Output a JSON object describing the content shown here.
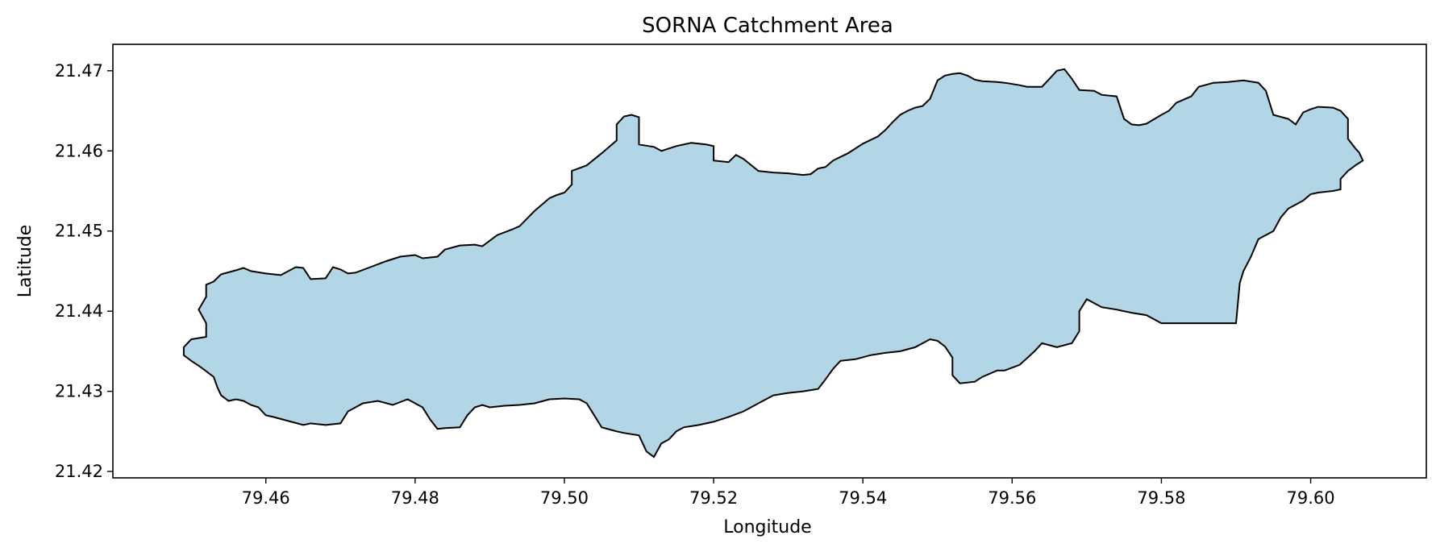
{
  "chart_data": {
    "type": "area",
    "title": "SORNA Catchment Area",
    "xlabel": "Longitude",
    "ylabel": "Latitude",
    "xlim": [
      79.4395,
      79.6155
    ],
    "ylim": [
      21.4192,
      21.4733
    ],
    "x_ticks": [
      79.46,
      79.48,
      79.5,
      79.52,
      79.54,
      79.56,
      79.58,
      79.6
    ],
    "x_tick_labels": [
      "79.46",
      "79.48",
      "79.50",
      "79.52",
      "79.54",
      "79.56",
      "79.58",
      "79.60"
    ],
    "y_ticks": [
      21.42,
      21.43,
      21.44,
      21.45,
      21.46,
      21.47
    ],
    "y_tick_labels": [
      "21.42",
      "21.43",
      "21.44",
      "21.45",
      "21.46",
      "21.47"
    ],
    "grid": false,
    "colors": {
      "fill": "#b2d6e6",
      "outline": "#000000"
    },
    "series": [
      {
        "polygon": [
          [
            79.449,
            21.4355
          ],
          [
            79.45,
            21.4365
          ],
          [
            79.452,
            21.4368
          ],
          [
            79.452,
            21.4385
          ],
          [
            79.451,
            21.4402
          ],
          [
            79.452,
            21.4418
          ],
          [
            79.452,
            21.4433
          ],
          [
            79.453,
            21.4437
          ],
          [
            79.454,
            21.4446
          ],
          [
            79.456,
            21.4451
          ],
          [
            79.457,
            21.4454
          ],
          [
            79.458,
            21.445
          ],
          [
            79.46,
            21.4447
          ],
          [
            79.462,
            21.4445
          ],
          [
            79.464,
            21.4455
          ],
          [
            79.465,
            21.4454
          ],
          [
            79.466,
            21.444
          ],
          [
            79.468,
            21.4441
          ],
          [
            79.469,
            21.4455
          ],
          [
            79.47,
            21.4452
          ],
          [
            79.471,
            21.4447
          ],
          [
            79.472,
            21.4448
          ],
          [
            79.474,
            21.4455
          ],
          [
            79.476,
            21.4462
          ],
          [
            79.478,
            21.4468
          ],
          [
            79.48,
            21.447
          ],
          [
            79.481,
            21.4466
          ],
          [
            79.483,
            21.4468
          ],
          [
            79.484,
            21.4477
          ],
          [
            79.486,
            21.4482
          ],
          [
            79.488,
            21.4483
          ],
          [
            79.489,
            21.4481
          ],
          [
            79.491,
            21.4495
          ],
          [
            79.493,
            21.4502
          ],
          [
            79.494,
            21.4506
          ],
          [
            79.496,
            21.4525
          ],
          [
            79.498,
            21.4541
          ],
          [
            79.499,
            21.4545
          ],
          [
            79.5,
            21.4548
          ],
          [
            79.501,
            21.4558
          ],
          [
            79.501,
            21.4575
          ],
          [
            79.503,
            21.4582
          ],
          [
            79.505,
            21.4597
          ],
          [
            79.506,
            21.4605
          ],
          [
            79.507,
            21.4613
          ],
          [
            79.507,
            21.4633
          ],
          [
            79.508,
            21.4643
          ],
          [
            79.509,
            21.4645
          ],
          [
            79.51,
            21.4642
          ],
          [
            79.51,
            21.4608
          ],
          [
            79.512,
            21.4605
          ],
          [
            79.513,
            21.46
          ],
          [
            79.515,
            21.4606
          ],
          [
            79.517,
            21.461
          ],
          [
            79.519,
            21.4608
          ],
          [
            79.52,
            21.4606
          ],
          [
            79.52,
            21.4588
          ],
          [
            79.522,
            21.4586
          ],
          [
            79.523,
            21.4595
          ],
          [
            79.524,
            21.459
          ],
          [
            79.526,
            21.4575
          ],
          [
            79.528,
            21.4573
          ],
          [
            79.53,
            21.4572
          ],
          [
            79.532,
            21.457
          ],
          [
            79.533,
            21.4571
          ],
          [
            79.534,
            21.4578
          ],
          [
            79.535,
            21.458
          ],
          [
            79.536,
            21.4588
          ],
          [
            79.538,
            21.4597
          ],
          [
            79.54,
            21.4609
          ],
          [
            79.542,
            21.4618
          ],
          [
            79.543,
            21.4626
          ],
          [
            79.544,
            21.4636
          ],
          [
            79.545,
            21.4645
          ],
          [
            79.546,
            21.465
          ],
          [
            79.547,
            21.4654
          ],
          [
            79.548,
            21.4656
          ],
          [
            79.549,
            21.4665
          ],
          [
            79.55,
            21.4688
          ],
          [
            79.551,
            21.4694
          ],
          [
            79.552,
            21.4696
          ],
          [
            79.553,
            21.4697
          ],
          [
            79.554,
            21.4694
          ],
          [
            79.555,
            21.4689
          ],
          [
            79.556,
            21.4687
          ],
          [
            79.558,
            21.4686
          ],
          [
            79.559,
            21.4685
          ],
          [
            79.561,
            21.4682
          ],
          [
            79.562,
            21.468
          ],
          [
            79.564,
            21.468
          ],
          [
            79.565,
            21.469
          ],
          [
            79.566,
            21.47
          ],
          [
            79.567,
            21.4702
          ],
          [
            79.568,
            21.469
          ],
          [
            79.569,
            21.4676
          ],
          [
            79.571,
            21.4675
          ],
          [
            79.572,
            21.467
          ],
          [
            79.574,
            21.4668
          ],
          [
            79.575,
            21.464
          ],
          [
            79.576,
            21.4633
          ],
          [
            79.577,
            21.4632
          ],
          [
            79.578,
            21.4634
          ],
          [
            79.58,
            21.4645
          ],
          [
            79.581,
            21.465
          ],
          [
            79.582,
            21.466
          ],
          [
            79.584,
            21.4668
          ],
          [
            79.585,
            21.468
          ],
          [
            79.587,
            21.4685
          ],
          [
            79.589,
            21.4686
          ],
          [
            79.591,
            21.4688
          ],
          [
            79.593,
            21.4685
          ],
          [
            79.594,
            21.4675
          ],
          [
            79.595,
            21.4645
          ],
          [
            79.597,
            21.464
          ],
          [
            79.598,
            21.4633
          ],
          [
            79.599,
            21.4648
          ],
          [
            79.6,
            21.4652
          ],
          [
            79.601,
            21.4655
          ],
          [
            79.603,
            21.4654
          ],
          [
            79.604,
            21.465
          ],
          [
            79.605,
            21.464
          ],
          [
            79.605,
            21.4615
          ],
          [
            79.606,
            21.4603
          ],
          [
            79.6065,
            21.4598
          ],
          [
            79.607,
            21.4588
          ],
          [
            79.606,
            21.4582
          ],
          [
            79.605,
            21.4575
          ],
          [
            79.604,
            21.4565
          ],
          [
            79.604,
            21.4552
          ],
          [
            79.603,
            21.455
          ],
          [
            79.601,
            21.4548
          ],
          [
            79.6,
            21.4546
          ],
          [
            79.599,
            21.4538
          ],
          [
            79.597,
            21.4528
          ],
          [
            79.596,
            21.4517
          ],
          [
            79.595,
            21.45
          ],
          [
            79.594,
            21.4495
          ],
          [
            79.593,
            21.449
          ],
          [
            79.592,
            21.4468
          ],
          [
            79.591,
            21.445
          ],
          [
            79.5905,
            21.4435
          ],
          [
            79.59,
            21.4385
          ],
          [
            79.58,
            21.4385
          ],
          [
            79.578,
            21.4395
          ],
          [
            79.576,
            21.4398
          ],
          [
            79.574,
            21.4402
          ],
          [
            79.572,
            21.4405
          ],
          [
            79.571,
            21.441
          ],
          [
            79.57,
            21.4415
          ],
          [
            79.569,
            21.44
          ],
          [
            79.569,
            21.4375
          ],
          [
            79.568,
            21.436
          ],
          [
            79.566,
            21.4355
          ],
          [
            79.564,
            21.436
          ],
          [
            79.563,
            21.435
          ],
          [
            79.561,
            21.4333
          ],
          [
            79.559,
            21.4326
          ],
          [
            79.558,
            21.4326
          ],
          [
            79.556,
            21.4318
          ],
          [
            79.555,
            21.4312
          ],
          [
            79.553,
            21.431
          ],
          [
            79.552,
            21.432
          ],
          [
            79.552,
            21.4342
          ],
          [
            79.551,
            21.4356
          ],
          [
            79.55,
            21.4363
          ],
          [
            79.549,
            21.4365
          ],
          [
            79.547,
            21.4355
          ],
          [
            79.545,
            21.435
          ],
          [
            79.543,
            21.4348
          ],
          [
            79.541,
            21.4345
          ],
          [
            79.539,
            21.434
          ],
          [
            79.537,
            21.4338
          ],
          [
            79.536,
            21.4328
          ],
          [
            79.535,
            21.4315
          ],
          [
            79.534,
            21.4303
          ],
          [
            79.532,
            21.43
          ],
          [
            79.53,
            21.4298
          ],
          [
            79.528,
            21.4295
          ],
          [
            79.526,
            21.4285
          ],
          [
            79.524,
            21.4275
          ],
          [
            79.522,
            21.4268
          ],
          [
            79.52,
            21.4262
          ],
          [
            79.518,
            21.4258
          ],
          [
            79.516,
            21.4255
          ],
          [
            79.515,
            21.425
          ],
          [
            79.514,
            21.424
          ],
          [
            79.513,
            21.4235
          ],
          [
            79.512,
            21.4218
          ],
          [
            79.511,
            21.4225
          ],
          [
            79.51,
            21.4245
          ],
          [
            79.508,
            21.4248
          ],
          [
            79.507,
            21.425
          ],
          [
            79.505,
            21.4255
          ],
          [
            79.504,
            21.427
          ],
          [
            79.503,
            21.4285
          ],
          [
            79.502,
            21.429
          ],
          [
            79.5,
            21.4291
          ],
          [
            79.498,
            21.429
          ],
          [
            79.496,
            21.4285
          ],
          [
            79.494,
            21.4283
          ],
          [
            79.492,
            21.4282
          ],
          [
            79.49,
            21.428
          ],
          [
            79.489,
            21.4283
          ],
          [
            79.488,
            21.428
          ],
          [
            79.487,
            21.427
          ],
          [
            79.486,
            21.4255
          ],
          [
            79.484,
            21.4254
          ],
          [
            79.483,
            21.4253
          ],
          [
            79.482,
            21.4265
          ],
          [
            79.481,
            21.428
          ],
          [
            79.479,
            21.429
          ],
          [
            79.477,
            21.4283
          ],
          [
            79.475,
            21.4288
          ],
          [
            79.473,
            21.4285
          ],
          [
            79.471,
            21.4275
          ],
          [
            79.47,
            21.426
          ],
          [
            79.468,
            21.4258
          ],
          [
            79.466,
            21.426
          ],
          [
            79.465,
            21.4258
          ],
          [
            79.463,
            21.4263
          ],
          [
            79.461,
            21.4268
          ],
          [
            79.46,
            21.427
          ],
          [
            79.459,
            21.428
          ],
          [
            79.458,
            21.4283
          ],
          [
            79.457,
            21.4288
          ],
          [
            79.456,
            21.429
          ],
          [
            79.455,
            21.4288
          ],
          [
            79.454,
            21.4295
          ],
          [
            79.4535,
            21.4305
          ],
          [
            79.453,
            21.4318
          ],
          [
            79.452,
            21.4325
          ],
          [
            79.451,
            21.4332
          ],
          [
            79.45,
            21.4338
          ],
          [
            79.449,
            21.4345
          ]
        ]
      }
    ]
  }
}
